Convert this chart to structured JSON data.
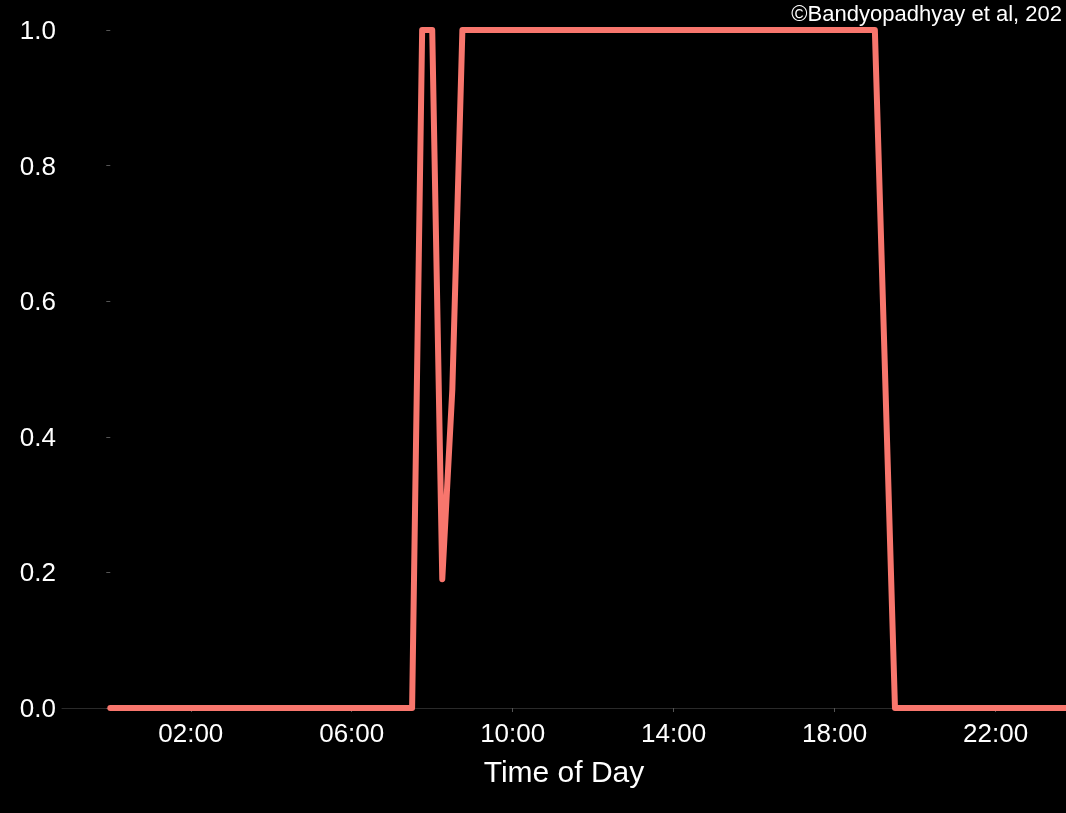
{
  "chart_data": {
    "type": "line",
    "xlabel": "Time of Day",
    "annotations": [
      "©Bandyopadhyay et al, 202"
    ],
    "x": [
      0,
      7.5,
      7.75,
      8.0,
      8.25,
      8.5,
      8.75,
      19.0,
      19.5,
      23.75
    ],
    "series": [
      {
        "color": "#f8766d",
        "values": [
          0,
          0,
          1,
          1,
          0.19,
          0.47,
          1,
          1,
          0,
          0
        ]
      }
    ],
    "xlim": [
      -1.2,
      23.75
    ],
    "xticks": [
      {
        "value": 2,
        "label": "02:00"
      },
      {
        "value": 6,
        "label": "06:00"
      },
      {
        "value": 10,
        "label": "10:00"
      },
      {
        "value": 14,
        "label": "14:00"
      },
      {
        "value": 18,
        "label": "18:00"
      },
      {
        "value": 22,
        "label": "22:00"
      }
    ],
    "ylim": [
      0,
      1.0
    ],
    "yticks": [
      {
        "value": 0,
        "label": "0.0"
      },
      {
        "value": 0.2,
        "label": "0.2"
      },
      {
        "value": 0.4,
        "label": "0.4"
      },
      {
        "value": 0.6,
        "label": "0.6"
      },
      {
        "value": 0.8,
        "label": "0.8"
      },
      {
        "value": 1.0,
        "label": "1.0"
      }
    ],
    "grid": false,
    "marker": "none",
    "line_style": "solid"
  }
}
